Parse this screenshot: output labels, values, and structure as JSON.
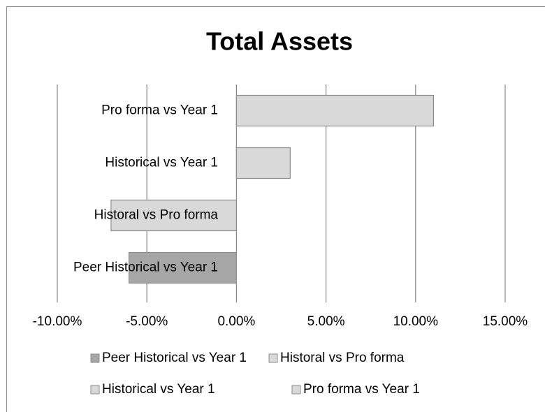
{
  "chart_data": {
    "type": "bar",
    "orientation": "horizontal",
    "title": "Total Assets",
    "categories": [
      "Peer Historical vs Year 1",
      "Historal vs Pro forma",
      "Historical vs Year 1",
      "Pro forma vs Year 1"
    ],
    "series": [
      {
        "name": "Peer Historical vs Year 1",
        "color": "#a6a6a6",
        "values": [
          -6,
          null,
          null,
          null
        ]
      },
      {
        "name": "Historal vs Pro forma",
        "color": "#d9d9d9",
        "values": [
          null,
          -7,
          null,
          null
        ]
      },
      {
        "name": "Historical vs Year 1",
        "color": "#d9d9d9",
        "values": [
          null,
          null,
          3,
          null
        ]
      },
      {
        "name": "Pro forma vs Year 1",
        "color": "#d9d9d9",
        "values": [
          null,
          null,
          null,
          11
        ]
      }
    ],
    "xlim": [
      -10,
      15
    ],
    "xticks": [
      {
        "value": -10,
        "label": "-10.00%"
      },
      {
        "value": -5,
        "label": "-5.00%"
      },
      {
        "value": 0,
        "label": "0.00%"
      },
      {
        "value": 5,
        "label": "5.00%"
      },
      {
        "value": 10,
        "label": "10.00%"
      },
      {
        "value": 15,
        "label": "15.00%"
      }
    ],
    "grid": true,
    "legend": "bottom"
  }
}
